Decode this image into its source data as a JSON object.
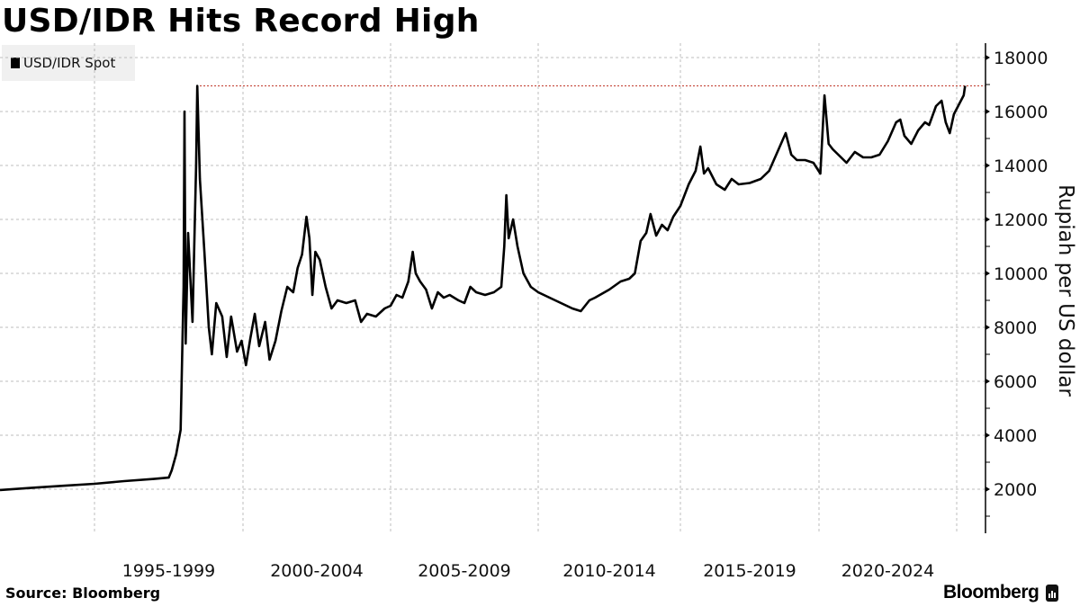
{
  "header": {
    "title": "USD/IDR Hits Record High"
  },
  "legend": {
    "items": [
      {
        "label": "USD/IDR Spot",
        "color": "#000000"
      }
    ]
  },
  "footer": {
    "source": "Source: Bloomberg",
    "brand": "Bloomberg"
  },
  "colors": {
    "line": "#000000",
    "record_line": "#c0392b",
    "grid": "#bdbdbd",
    "legend_bg": "#f0f0f0"
  },
  "chart_data": {
    "type": "line",
    "title": "USD/IDR Hits Record High",
    "xlabel": "",
    "ylabel": "Rupiah per US dollar",
    "ylim": [
      530,
      18300
    ],
    "yticks": [
      2000,
      4000,
      6000,
      8000,
      10000,
      12000,
      14000,
      16000,
      18000
    ],
    "xtick_labels": [
      "1995-1999",
      "2000-2004",
      "2005-2009",
      "2010-2014",
      "2015-2019",
      "2020-2024"
    ],
    "x_gridlines_years": [
      1995,
      2000,
      2005,
      2010,
      2015,
      2020,
      2025
    ],
    "grid": true,
    "legend_position": "top-left",
    "record_high_reference": 16950,
    "series": [
      {
        "name": "USD/IDR Spot",
        "points": [
          [
            1991.8,
            1970
          ],
          [
            1993.0,
            2060
          ],
          [
            1994.0,
            2130
          ],
          [
            1995.0,
            2200
          ],
          [
            1996.0,
            2300
          ],
          [
            1997.0,
            2380
          ],
          [
            1997.5,
            2430
          ],
          [
            1997.6,
            2700
          ],
          [
            1997.75,
            3300
          ],
          [
            1997.9,
            4200
          ],
          [
            1998.0,
            9500
          ],
          [
            1998.03,
            16000
          ],
          [
            1998.07,
            7400
          ],
          [
            1998.15,
            11500
          ],
          [
            1998.3,
            8200
          ],
          [
            1998.42,
            14000
          ],
          [
            1998.46,
            16950
          ],
          [
            1998.55,
            13500
          ],
          [
            1998.7,
            10800
          ],
          [
            1998.85,
            8000
          ],
          [
            1998.95,
            7000
          ],
          [
            1999.1,
            8900
          ],
          [
            1999.3,
            8400
          ],
          [
            1999.45,
            6900
          ],
          [
            1999.6,
            8400
          ],
          [
            1999.8,
            7100
          ],
          [
            1999.95,
            7500
          ],
          [
            2000.1,
            6600
          ],
          [
            2000.25,
            7600
          ],
          [
            2000.4,
            8500
          ],
          [
            2000.55,
            7300
          ],
          [
            2000.75,
            8200
          ],
          [
            2000.9,
            6800
          ],
          [
            2001.1,
            7500
          ],
          [
            2001.3,
            8600
          ],
          [
            2001.5,
            9500
          ],
          [
            2001.7,
            9300
          ],
          [
            2001.85,
            10200
          ],
          [
            2002.0,
            10700
          ],
          [
            2002.15,
            12100
          ],
          [
            2002.25,
            11300
          ],
          [
            2002.35,
            9200
          ],
          [
            2002.45,
            10800
          ],
          [
            2002.6,
            10500
          ],
          [
            2002.8,
            9500
          ],
          [
            2003.0,
            8700
          ],
          [
            2003.2,
            9000
          ],
          [
            2003.5,
            8900
          ],
          [
            2003.8,
            9000
          ],
          [
            2004.0,
            8200
          ],
          [
            2004.2,
            8500
          ],
          [
            2004.5,
            8400
          ],
          [
            2004.8,
            8700
          ],
          [
            2005.0,
            8800
          ],
          [
            2005.2,
            9200
          ],
          [
            2005.4,
            9100
          ],
          [
            2005.6,
            9700
          ],
          [
            2005.75,
            10800
          ],
          [
            2005.85,
            10000
          ],
          [
            2006.0,
            9700
          ],
          [
            2006.2,
            9400
          ],
          [
            2006.4,
            8700
          ],
          [
            2006.6,
            9300
          ],
          [
            2006.8,
            9100
          ],
          [
            2007.0,
            9200
          ],
          [
            2007.3,
            9000
          ],
          [
            2007.5,
            8900
          ],
          [
            2007.7,
            9500
          ],
          [
            2007.9,
            9300
          ],
          [
            2008.2,
            9200
          ],
          [
            2008.5,
            9300
          ],
          [
            2008.75,
            9500
          ],
          [
            2008.85,
            11000
          ],
          [
            2008.92,
            12900
          ],
          [
            2009.0,
            11300
          ],
          [
            2009.15,
            12000
          ],
          [
            2009.3,
            11000
          ],
          [
            2009.5,
            10000
          ],
          [
            2009.75,
            9500
          ],
          [
            2010.0,
            9300
          ],
          [
            2010.4,
            9100
          ],
          [
            2010.8,
            8900
          ],
          [
            2011.2,
            8700
          ],
          [
            2011.5,
            8600
          ],
          [
            2011.8,
            9000
          ],
          [
            2012.0,
            9100
          ],
          [
            2012.5,
            9400
          ],
          [
            2012.9,
            9700
          ],
          [
            2013.2,
            9800
          ],
          [
            2013.4,
            10000
          ],
          [
            2013.6,
            11200
          ],
          [
            2013.8,
            11500
          ],
          [
            2013.95,
            12200
          ],
          [
            2014.15,
            11400
          ],
          [
            2014.35,
            11800
          ],
          [
            2014.55,
            11600
          ],
          [
            2014.75,
            12100
          ],
          [
            2015.0,
            12500
          ],
          [
            2015.3,
            13300
          ],
          [
            2015.55,
            13800
          ],
          [
            2015.72,
            14700
          ],
          [
            2015.85,
            13700
          ],
          [
            2016.0,
            13900
          ],
          [
            2016.3,
            13300
          ],
          [
            2016.6,
            13100
          ],
          [
            2016.85,
            13500
          ],
          [
            2017.1,
            13300
          ],
          [
            2017.5,
            13350
          ],
          [
            2017.9,
            13500
          ],
          [
            2018.2,
            13800
          ],
          [
            2018.5,
            14500
          ],
          [
            2018.8,
            15200
          ],
          [
            2019.0,
            14400
          ],
          [
            2019.2,
            14200
          ],
          [
            2019.5,
            14200
          ],
          [
            2019.8,
            14100
          ],
          [
            2020.05,
            13700
          ],
          [
            2020.2,
            16600
          ],
          [
            2020.35,
            14800
          ],
          [
            2020.5,
            14600
          ],
          [
            2020.8,
            14300
          ],
          [
            2021.0,
            14100
          ],
          [
            2021.3,
            14500
          ],
          [
            2021.6,
            14300
          ],
          [
            2021.9,
            14300
          ],
          [
            2022.2,
            14400
          ],
          [
            2022.5,
            14900
          ],
          [
            2022.8,
            15600
          ],
          [
            2022.95,
            15700
          ],
          [
            2023.1,
            15100
          ],
          [
            2023.35,
            14800
          ],
          [
            2023.6,
            15300
          ],
          [
            2023.85,
            15600
          ],
          [
            2024.0,
            15500
          ],
          [
            2024.25,
            16200
          ],
          [
            2024.45,
            16400
          ],
          [
            2024.6,
            15600
          ],
          [
            2024.75,
            15200
          ],
          [
            2024.9,
            15900
          ],
          [
            2025.1,
            16300
          ],
          [
            2025.25,
            16600
          ],
          [
            2025.3,
            16950
          ]
        ]
      }
    ]
  }
}
